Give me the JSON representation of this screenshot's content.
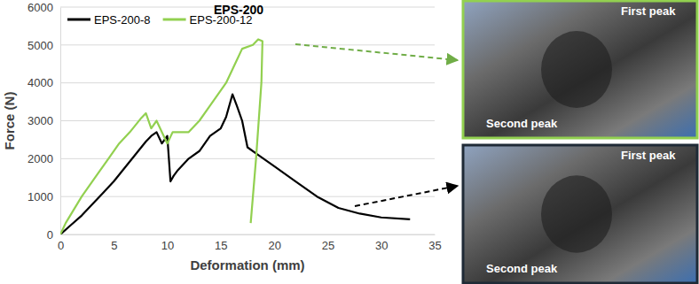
{
  "chart_data": {
    "type": "line",
    "title": "EPS-200",
    "x_label": "Deformation (mm)",
    "y_label": "Force (N)",
    "xlim": [
      0,
      35
    ],
    "xticks": [
      0,
      5,
      10,
      15,
      20,
      25,
      30,
      35
    ],
    "ylim": [
      0,
      6000
    ],
    "yticks": [
      0,
      1000,
      2000,
      3000,
      4000,
      5000,
      6000
    ],
    "grid": true,
    "legend": "top-left",
    "series": [
      {
        "name": "EPS-200-8",
        "color": "#000000",
        "x": [
          0,
          1,
          2,
          3,
          4,
          5,
          6,
          7,
          8,
          8.5,
          9,
          9.5,
          10,
          10.3,
          10.6,
          11,
          12,
          13,
          14,
          15,
          15.5,
          16.1,
          16.5,
          17,
          17.5,
          18.5,
          20,
          22,
          24,
          26,
          28,
          30,
          32.7
        ],
        "values": [
          0,
          250,
          500,
          800,
          1100,
          1400,
          1750,
          2100,
          2450,
          2600,
          2700,
          2400,
          2600,
          1400,
          1550,
          1700,
          2000,
          2200,
          2600,
          2800,
          3100,
          3700,
          3400,
          3000,
          2300,
          2100,
          1800,
          1400,
          1000,
          700,
          550,
          450,
          400
        ]
      },
      {
        "name": "EPS-200-12",
        "color": "#92d050",
        "x": [
          0,
          0.5,
          2,
          3.5,
          4.5,
          5.5,
          6.5,
          7.5,
          8,
          8.5,
          9,
          10,
          10.5,
          12,
          13,
          14,
          15.5,
          16.5,
          17,
          18,
          18.5,
          18.9,
          18.8,
          18.3,
          17.8
        ],
        "values": [
          0,
          300,
          1000,
          1600,
          2000,
          2400,
          2700,
          3050,
          3200,
          2800,
          3000,
          2400,
          2700,
          2700,
          3000,
          3400,
          4000,
          4600,
          4900,
          5000,
          5150,
          5100,
          4000,
          2000,
          300
        ]
      }
    ],
    "annotations": [
      "First peak",
      "Second peak",
      "First peak",
      "Second peak"
    ]
  }
}
